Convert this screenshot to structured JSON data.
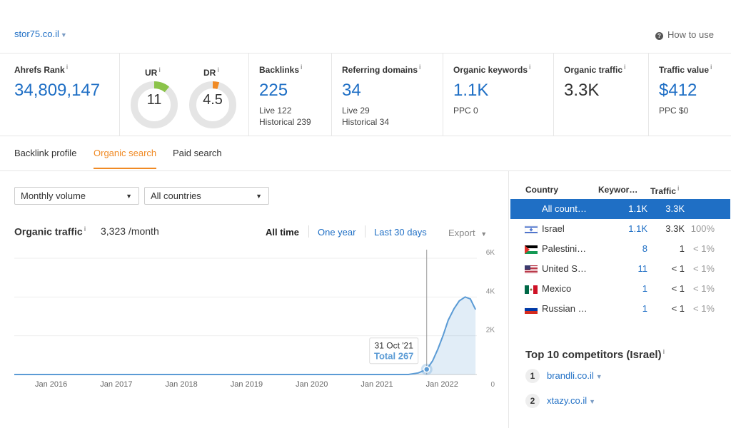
{
  "header": {
    "domain": "stor75.co.il",
    "how_to_use": "How to use"
  },
  "metrics": {
    "ahrefs_rank": {
      "label": "Ahrefs Rank",
      "value": "34,809,147"
    },
    "ur": {
      "label": "UR",
      "value": "11",
      "score": 11
    },
    "dr": {
      "label": "DR",
      "value": "4.5",
      "score": 4.5
    },
    "backlinks": {
      "label": "Backlinks",
      "value": "225",
      "sub1": "Live 122",
      "sub2": "Historical 239"
    },
    "referring_domains": {
      "label": "Referring domains",
      "value": "34",
      "sub1": "Live 29",
      "sub2": "Historical 34"
    },
    "organic_keywords": {
      "label": "Organic keywords",
      "value": "1.1K",
      "sub1": "PPC 0"
    },
    "organic_traffic": {
      "label": "Organic traffic",
      "value": "3.3K"
    },
    "traffic_value": {
      "label": "Traffic value",
      "value": "$412",
      "sub1": "PPC $0"
    }
  },
  "tabs": [
    "Backlink profile",
    "Organic search",
    "Paid search"
  ],
  "filters": {
    "volume": "Monthly volume",
    "countries": "All countries"
  },
  "traffic": {
    "title": "Organic traffic",
    "value": "3,323 /month",
    "ranges": [
      "All time",
      "One year",
      "Last 30 days"
    ],
    "export": "Export"
  },
  "tooltip": {
    "date": "31 Oct '21",
    "total": "Total 267"
  },
  "chart_data": {
    "type": "area",
    "x_ticks": [
      "Jan 2016",
      "Jan 2017",
      "Jan 2018",
      "Jan 2019",
      "Jan 2020",
      "Jan 2021",
      "Jan 2022"
    ],
    "y_ticks": [
      "6K",
      "4K",
      "2K",
      "0"
    ],
    "ylim": [
      0,
      6000
    ],
    "series": [
      {
        "values_x": [
          2015.5,
          2021.55,
          2021.7,
          2021.83,
          2021.92,
          2022.0,
          2022.08,
          2022.16,
          2022.25,
          2022.33,
          2022.42,
          2022.5,
          2022.58
        ],
        "values_y": [
          0,
          0,
          80,
          267,
          700,
          1300,
          2000,
          2800,
          3400,
          3800,
          4000,
          3900,
          3350
        ]
      }
    ],
    "color": "#5b9bd5"
  },
  "countries_table": {
    "headers": [
      "Country",
      "Keywor…",
      "Traffic"
    ],
    "rows": [
      {
        "name": "All count…",
        "keywords": "1.1K",
        "traffic": "3.3K",
        "pct": "",
        "flag": "none"
      },
      {
        "name": "Israel",
        "keywords": "1.1K",
        "traffic": "3.3K",
        "pct": "100%",
        "flag": "israel-flag-icon"
      },
      {
        "name": "Palestini…",
        "keywords": "8",
        "traffic": "1",
        "pct": "< 1%",
        "flag": "palestine-flag-icon"
      },
      {
        "name": "United S…",
        "keywords": "11",
        "traffic": "< 1",
        "pct": "< 1%",
        "flag": "usa-flag-icon"
      },
      {
        "name": "Mexico",
        "keywords": "1",
        "traffic": "< 1",
        "pct": "< 1%",
        "flag": "mexico-flag-icon"
      },
      {
        "name": "Russian …",
        "keywords": "1",
        "traffic": "< 1",
        "pct": "< 1%",
        "flag": "russia-flag-icon"
      }
    ]
  },
  "competitors": {
    "title": "Top 10 competitors (Israel)",
    "items": [
      {
        "rank": "1",
        "name": "brandli.co.il"
      },
      {
        "rank": "2",
        "name": "xtazy.co.il"
      }
    ]
  }
}
